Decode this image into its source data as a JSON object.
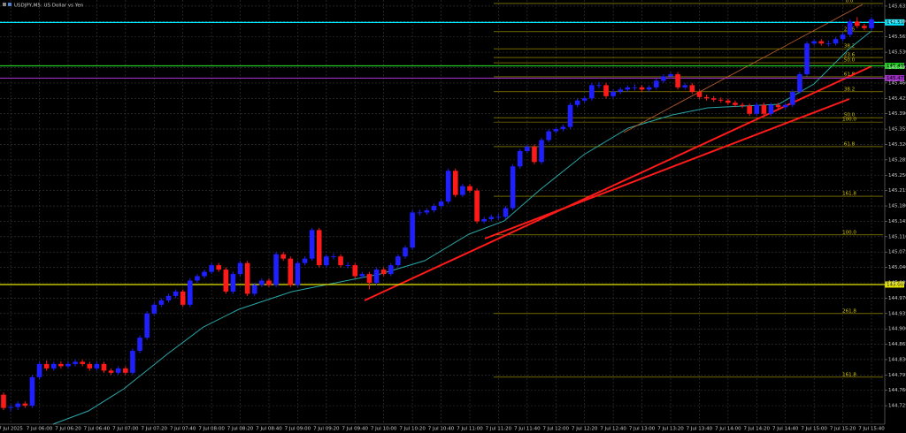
{
  "chart_data": {
    "type": "candlestick",
    "title": "USDJPY,M5: US Dollar vs Yen",
    "up_color": "#1f1fff",
    "down_color": "#ff1a1a",
    "grid": true,
    "ylim": [
      144.683,
      145.649
    ],
    "yticks": [
      145.635,
      {
        "value": 145.6,
        "label": "145.600"
      },
      145.565,
      {
        "value": 145.53,
        "label": "145.530"
      },
      145.495,
      {
        "value": 145.46,
        "label": "145.460"
      },
      145.425,
      {
        "value": 145.39,
        "label": "145.390"
      },
      145.355,
      {
        "value": 145.32,
        "label": "145.320"
      },
      145.285,
      {
        "value": 145.25,
        "label": "145.250"
      },
      145.215,
      {
        "value": 145.18,
        "label": "145.180"
      },
      145.145,
      {
        "value": 145.11,
        "label": "145.110"
      },
      145.075,
      {
        "value": 145.04,
        "label": "145.040"
      },
      145.005,
      {
        "value": 144.97,
        "label": "144.970"
      },
      144.935,
      {
        "value": 144.9,
        "label": "144.900"
      },
      144.865,
      {
        "value": 144.83,
        "label": "144.830"
      },
      144.795,
      {
        "value": 144.76,
        "label": "144.760"
      },
      144.725
    ],
    "levels": [
      {
        "value": 145.598,
        "color": "#00e5ff"
      },
      {
        "value": 145.499,
        "color": "#22cc22"
      },
      {
        "value": 145.471,
        "color": "#9b2fbf"
      },
      {
        "value": 145.001,
        "color": "#e6e600"
      }
    ],
    "fib_levels": [
      {
        "value": 145.641,
        "label": "0.0"
      },
      {
        "value": 145.577,
        "label": "23.6"
      },
      {
        "value": 145.538,
        "label": "38.2"
      },
      {
        "value": 145.518,
        "label": "23.6"
      },
      {
        "value": 145.506,
        "label": "50.0"
      },
      {
        "value": 145.474,
        "label": "61.8"
      },
      {
        "value": 145.44,
        "label": "38.2"
      },
      {
        "value": 145.381,
        "label": "50.0"
      },
      {
        "value": 145.371,
        "label": "100.0"
      },
      {
        "value": 145.315,
        "label": "61.8"
      },
      {
        "value": 145.202,
        "label": "161.8"
      },
      {
        "value": 145.114,
        "label": "100.0"
      },
      {
        "value": 144.935,
        "label": "261.8"
      },
      {
        "value": 144.79,
        "label": "161.8"
      }
    ],
    "categories": [
      null,
      "7 Jul 2025",
      null,
      null,
      null,
      "7 Jul 06:00",
      null,
      null,
      null,
      "7 Jul 06:20",
      null,
      null,
      null,
      "7 Jul 06:40",
      null,
      null,
      null,
      "7 Jul 07:00",
      null,
      null,
      null,
      "7 Jul 07:20",
      null,
      null,
      null,
      "7 Jul 07:40",
      null,
      null,
      null,
      "7 Jul 08:00",
      null,
      null,
      null,
      "7 Jul 08:20",
      null,
      null,
      null,
      "7 Jul 08:40",
      null,
      null,
      null,
      "7 Jul 09:00",
      null,
      null,
      null,
      "7 Jul 09:20",
      null,
      null,
      null,
      "7 Jul 09:40",
      null,
      null,
      null,
      "7 Jul 10:00",
      null,
      null,
      null,
      "7 Jul 10:20",
      null,
      null,
      null,
      "7 Jul 10:40",
      null,
      null,
      null,
      "7 Jul 11:00",
      null,
      null,
      null,
      "7 Jul 11:20",
      null,
      null,
      null,
      "7 Jul 11:40",
      null,
      null,
      null,
      "7 Jul 12:00",
      null,
      null,
      null,
      "7 Jul 12:20",
      null,
      null,
      null,
      "7 Jul 12:40",
      null,
      null,
      null,
      "7 Jul 13:00",
      null,
      null,
      null,
      "7 Jul 13:20",
      null,
      null,
      null,
      "7 Jul 13:40",
      null,
      null,
      null,
      "7 Jul 14:00",
      null,
      null,
      null,
      "7 Jul 14:20",
      null,
      null,
      null,
      "7 Jul 14:40",
      null,
      null,
      null,
      "7 Jul 15:00",
      null,
      null,
      null,
      "7 Jul 15:20",
      null,
      null,
      null,
      "7 Jul 15:40"
    ],
    "candles": [
      [
        144.75,
        144.755,
        144.715,
        144.72
      ],
      [
        144.72,
        144.728,
        144.712,
        144.722
      ],
      [
        144.722,
        144.735,
        144.715,
        144.73
      ],
      [
        144.73,
        144.735,
        144.72,
        144.725
      ],
      [
        144.725,
        144.795,
        144.72,
        144.79
      ],
      [
        144.79,
        144.825,
        144.785,
        144.82
      ],
      [
        144.82,
        144.828,
        144.805,
        144.81
      ],
      [
        144.81,
        144.825,
        144.805,
        144.82
      ],
      [
        144.82,
        144.826,
        144.81,
        144.815
      ],
      [
        144.815,
        144.825,
        144.81,
        144.82
      ],
      [
        144.82,
        144.83,
        144.815,
        144.825
      ],
      [
        144.825,
        144.83,
        144.815,
        144.82
      ],
      [
        144.82,
        144.825,
        144.805,
        144.81
      ],
      [
        144.81,
        144.825,
        144.805,
        144.82
      ],
      [
        144.82,
        144.825,
        144.8,
        144.805
      ],
      [
        144.805,
        144.81,
        144.795,
        144.8
      ],
      [
        144.8,
        144.815,
        144.795,
        144.81
      ],
      [
        144.81,
        144.815,
        144.795,
        144.8
      ],
      [
        144.8,
        144.855,
        144.795,
        144.85
      ],
      [
        144.85,
        144.885,
        144.845,
        144.88
      ],
      [
        144.88,
        144.94,
        144.875,
        144.935
      ],
      [
        144.935,
        144.96,
        144.93,
        144.955
      ],
      [
        144.955,
        144.97,
        144.95,
        144.965
      ],
      [
        144.965,
        144.98,
        144.96,
        144.975
      ],
      [
        144.975,
        144.99,
        144.97,
        144.985
      ],
      [
        144.985,
        144.99,
        144.95,
        144.955
      ],
      [
        144.955,
        145.015,
        144.95,
        145.01
      ],
      [
        145.01,
        145.025,
        145.005,
        145.02
      ],
      [
        145.02,
        145.035,
        145.015,
        145.03
      ],
      [
        145.03,
        145.05,
        145.025,
        145.045
      ],
      [
        145.045,
        145.05,
        145.03,
        145.035
      ],
      [
        145.035,
        145.04,
        144.98,
        144.985
      ],
      [
        144.985,
        145.03,
        144.98,
        145.025
      ],
      [
        145.025,
        145.055,
        145.02,
        145.05
      ],
      [
        145.05,
        145.055,
        144.975,
        144.98
      ],
      [
        144.98,
        145.005,
        144.975,
        145.0
      ],
      [
        145.0,
        145.015,
        144.995,
        145.01
      ],
      [
        145.01,
        145.015,
        144.995,
        145.0
      ],
      [
        145.0,
        145.075,
        144.995,
        145.07
      ],
      [
        145.07,
        145.075,
        145.055,
        145.06
      ],
      [
        145.06,
        145.065,
        144.995,
        145.0
      ],
      [
        145.0,
        145.055,
        144.995,
        145.05
      ],
      [
        145.05,
        145.065,
        145.045,
        145.06
      ],
      [
        145.06,
        145.13,
        145.055,
        145.125
      ],
      [
        145.125,
        145.13,
        145.04,
        145.045
      ],
      [
        145.045,
        145.07,
        145.04,
        145.065
      ],
      [
        145.065,
        145.072,
        145.058,
        145.065
      ],
      [
        145.065,
        145.07,
        145.04,
        145.045
      ],
      [
        145.045,
        145.052,
        145.038,
        145.045
      ],
      [
        145.045,
        145.05,
        145.015,
        145.02
      ],
      [
        145.02,
        145.03,
        145.015,
        145.025
      ],
      [
        145.025,
        145.03,
        144.99,
        145.005
      ],
      [
        145.005,
        145.04,
        145.0,
        145.035
      ],
      [
        145.035,
        145.04,
        145.02,
        145.025
      ],
      [
        145.025,
        145.05,
        145.02,
        145.045
      ],
      [
        145.045,
        145.07,
        145.04,
        145.065
      ],
      [
        145.065,
        145.09,
        145.06,
        145.085
      ],
      [
        145.085,
        145.17,
        145.08,
        145.165
      ],
      [
        145.165,
        145.172,
        145.158,
        145.165
      ],
      [
        145.165,
        145.175,
        145.16,
        145.17
      ],
      [
        145.17,
        145.185,
        145.165,
        145.18
      ],
      [
        145.18,
        145.195,
        145.175,
        145.19
      ],
      [
        145.19,
        145.265,
        145.185,
        145.26
      ],
      [
        145.26,
        145.265,
        145.2,
        145.205
      ],
      [
        145.205,
        145.23,
        145.2,
        145.225
      ],
      [
        145.225,
        145.23,
        145.21,
        145.215
      ],
      [
        145.215,
        145.22,
        145.14,
        145.145
      ],
      [
        145.145,
        145.155,
        145.14,
        145.15
      ],
      [
        145.15,
        145.16,
        145.145,
        145.155
      ],
      [
        145.155,
        145.162,
        145.148,
        145.155
      ],
      [
        145.155,
        145.18,
        145.15,
        145.175
      ],
      [
        145.175,
        145.275,
        145.17,
        145.27
      ],
      [
        145.27,
        145.31,
        145.265,
        145.305
      ],
      [
        145.305,
        145.32,
        145.3,
        145.315
      ],
      [
        145.315,
        145.32,
        145.275,
        145.28
      ],
      [
        145.28,
        145.335,
        145.275,
        145.33
      ],
      [
        145.33,
        145.355,
        145.325,
        145.35
      ],
      [
        145.35,
        145.36,
        145.345,
        145.355
      ],
      [
        145.355,
        145.365,
        145.35,
        145.36
      ],
      [
        145.36,
        145.415,
        145.355,
        145.41
      ],
      [
        145.41,
        145.425,
        145.405,
        145.42
      ],
      [
        145.42,
        145.43,
        145.415,
        145.425
      ],
      [
        145.425,
        145.46,
        145.42,
        145.455
      ],
      [
        145.455,
        145.462,
        145.448,
        145.455
      ],
      [
        145.455,
        145.46,
        145.425,
        145.43
      ],
      [
        145.43,
        145.445,
        145.425,
        145.44
      ],
      [
        145.44,
        145.45,
        145.435,
        145.445
      ],
      [
        145.445,
        145.455,
        145.44,
        145.45
      ],
      [
        145.45,
        145.457,
        145.443,
        145.45
      ],
      [
        145.45,
        145.455,
        145.44,
        145.445
      ],
      [
        145.445,
        145.455,
        145.44,
        145.45
      ],
      [
        145.45,
        145.47,
        145.445,
        145.465
      ],
      [
        145.465,
        145.48,
        145.46,
        145.475
      ],
      [
        145.475,
        145.485,
        145.47,
        145.48
      ],
      [
        145.48,
        145.485,
        145.445,
        145.45
      ],
      [
        145.45,
        145.46,
        145.445,
        145.455
      ],
      [
        145.455,
        145.46,
        145.435,
        145.44
      ],
      [
        145.44,
        145.445,
        145.423,
        145.428
      ],
      [
        145.428,
        145.433,
        145.42,
        145.425
      ],
      [
        145.425,
        145.43,
        145.417,
        145.422
      ],
      [
        145.422,
        145.427,
        145.415,
        145.42
      ],
      [
        145.42,
        145.425,
        145.41,
        145.415
      ],
      [
        145.415,
        145.42,
        145.405,
        145.41
      ],
      [
        145.41,
        145.415,
        145.403,
        145.408
      ],
      [
        145.408,
        145.413,
        145.385,
        145.39
      ],
      [
        145.39,
        145.415,
        145.385,
        145.41
      ],
      [
        145.41,
        145.415,
        145.385,
        145.39
      ],
      [
        145.39,
        145.415,
        145.385,
        145.41
      ],
      [
        145.41,
        145.415,
        145.4,
        145.405
      ],
      [
        145.405,
        145.415,
        145.4,
        145.41
      ],
      [
        145.41,
        145.445,
        145.405,
        145.44
      ],
      [
        145.44,
        145.485,
        145.435,
        145.48
      ],
      [
        145.48,
        145.555,
        145.475,
        145.55
      ],
      [
        145.55,
        145.56,
        145.545,
        145.555
      ],
      [
        145.555,
        145.56,
        145.545,
        145.55
      ],
      [
        145.55,
        145.557,
        145.543,
        145.55
      ],
      [
        145.55,
        145.565,
        145.545,
        145.56
      ],
      [
        145.56,
        145.575,
        145.555,
        145.57
      ],
      [
        145.57,
        145.605,
        145.565,
        145.6
      ],
      [
        145.6,
        145.61,
        145.585,
        145.59
      ],
      [
        145.59,
        145.595,
        145.58,
        145.585
      ],
      [
        145.585,
        145.61,
        145.58,
        145.605
      ]
    ]
  }
}
